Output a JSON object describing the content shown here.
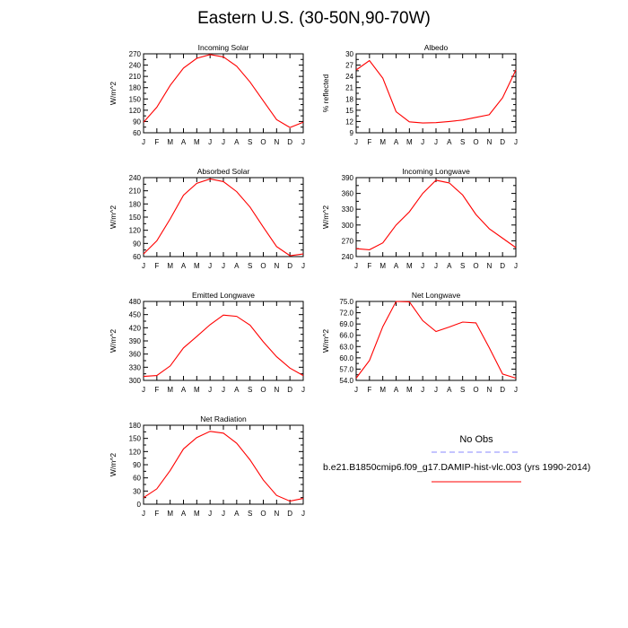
{
  "title": "Eastern U.S. (30-50N,90-70W)",
  "months": [
    "J",
    "F",
    "M",
    "A",
    "M",
    "J",
    "J",
    "A",
    "S",
    "O",
    "N",
    "D",
    "J"
  ],
  "legend": {
    "obs_label": "No Obs",
    "model_label": "b.e21.B1850cmip6.f09_g17.DAMIP-hist-vlc.003 (yrs 1990-2014)",
    "obs_color": "#8a8aff",
    "model_color": "#ff0000"
  },
  "chart_data": [
    {
      "type": "line",
      "title": "Incoming Solar",
      "ylabel": "W/m^2",
      "ylim": [
        60,
        270
      ],
      "yticks": [
        "60",
        "90",
        "120",
        "150",
        "180",
        "210",
        "240",
        "270"
      ],
      "series": [
        {
          "values": [
            88,
            128,
            186,
            232,
            258,
            268,
            262,
            237,
            195,
            145,
            95,
            74,
            88
          ]
        }
      ]
    },
    {
      "type": "line",
      "title": "Albedo",
      "ylabel": "% reflected",
      "ylim": [
        9,
        30
      ],
      "yticks": [
        "9",
        "12",
        "15",
        "18",
        "21",
        "24",
        "27",
        "30"
      ],
      "series": [
        {
          "values": [
            25.7,
            28.2,
            23.5,
            14.6,
            11.9,
            11.6,
            11.7,
            12.0,
            12.4,
            13.1,
            13.8,
            18.3,
            25.7
          ]
        }
      ]
    },
    {
      "type": "line",
      "title": "Absorbed Solar",
      "ylabel": "W/m^2",
      "ylim": [
        60,
        240
      ],
      "yticks": [
        "60",
        "90",
        "120",
        "150",
        "180",
        "210",
        "240"
      ],
      "series": [
        {
          "values": [
            66,
            96,
            146,
            200,
            227,
            237,
            231,
            208,
            173,
            127,
            83,
            62,
            66
          ]
        }
      ]
    },
    {
      "type": "line",
      "title": "Incoming Longwave",
      "ylabel": "W/m^2",
      "ylim": [
        240,
        390
      ],
      "yticks": [
        "240",
        "270",
        "300",
        "330",
        "360",
        "390"
      ],
      "series": [
        {
          "values": [
            255,
            253,
            266,
            300,
            325,
            360,
            385,
            380,
            357,
            320,
            293,
            275,
            257
          ]
        }
      ]
    },
    {
      "type": "line",
      "title": "Emitted Longwave",
      "ylabel": "W/m^2",
      "ylim": [
        300,
        480
      ],
      "yticks": [
        "300",
        "330",
        "360",
        "390",
        "420",
        "450",
        "480"
      ],
      "series": [
        {
          "values": [
            309,
            311,
            333,
            374,
            400,
            427,
            449,
            446,
            426,
            388,
            354,
            328,
            311
          ]
        }
      ]
    },
    {
      "type": "line",
      "title": "Net Longwave",
      "ylabel": "W/m^2",
      "ylim": [
        54,
        75
      ],
      "yticks": [
        "54.0",
        "57.0",
        "60.0",
        "63.0",
        "66.0",
        "69.0",
        "72.0",
        "75.0"
      ],
      "series": [
        {
          "values": [
            54.6,
            59.3,
            68.3,
            75.0,
            74.9,
            69.9,
            67.0,
            68.2,
            69.5,
            69.3,
            62.7,
            55.7,
            54.6
          ]
        }
      ]
    },
    {
      "type": "line",
      "title": "Net Radiation",
      "ylabel": "W/m^2",
      "ylim": [
        0,
        180
      ],
      "yticks": [
        "0",
        "30",
        "60",
        "90",
        "120",
        "150",
        "180"
      ],
      "series": [
        {
          "values": [
            15,
            35,
            77,
            126,
            152,
            166,
            162,
            139,
            101,
            55,
            20,
            7,
            13
          ]
        }
      ]
    }
  ]
}
